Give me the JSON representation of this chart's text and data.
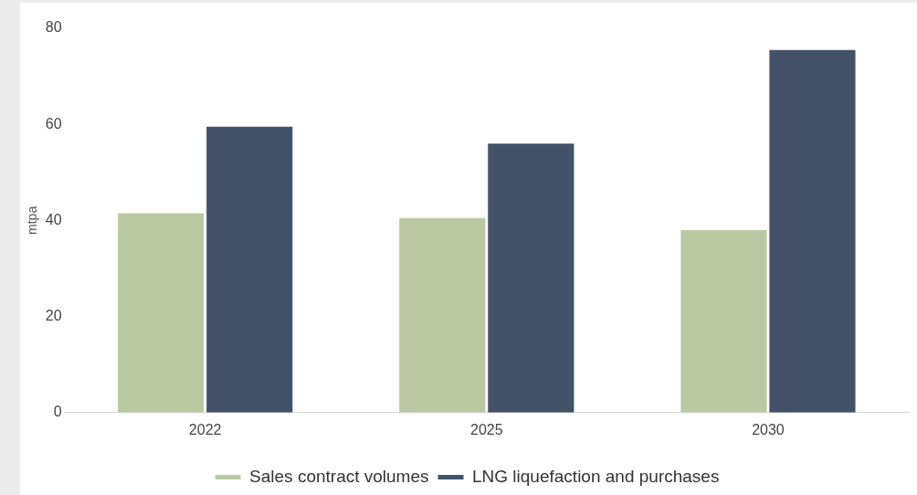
{
  "chart_data": {
    "type": "bar",
    "categories": [
      "2022",
      "2025",
      "2030"
    ],
    "series": [
      {
        "name": "Sales contract volumes",
        "color": "#bac9a2",
        "values": [
          41.5,
          40.5,
          38
        ]
      },
      {
        "name": "LNG liquefaction and purchases",
        "color": "#435268",
        "values": [
          59.5,
          56,
          75.5
        ]
      }
    ],
    "ylabel": "mtpa",
    "ylim": [
      0,
      80
    ],
    "yticks": [
      0,
      20,
      40,
      60,
      80
    ],
    "grid": false,
    "legend": "bottom"
  }
}
